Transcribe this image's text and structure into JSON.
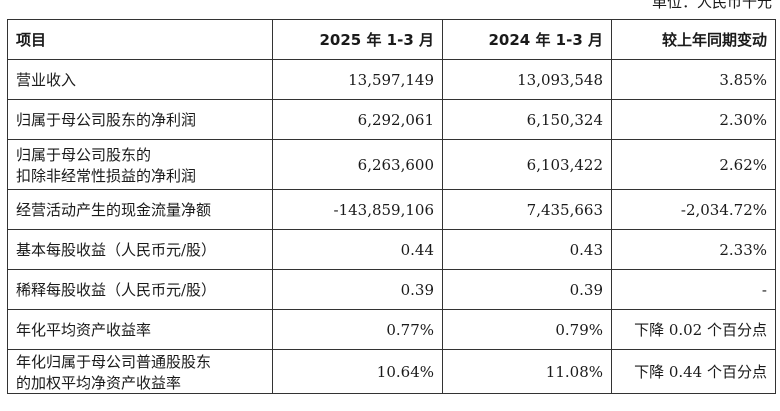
{
  "unit_note": "单位：人民币千元",
  "header": {
    "item": "项目",
    "col1": "2025 年 1-3 月",
    "col2": "2024 年 1-3 月",
    "col3": "较上年同期变动"
  },
  "rows": [
    {
      "item_lines": [
        "营业收入"
      ],
      "v2025": "13,597,149",
      "v2024": "13,093,548",
      "change": "3.85%"
    },
    {
      "item_lines": [
        "归属于母公司股东的净利润"
      ],
      "v2025": "6,292,061",
      "v2024": "6,150,324",
      "change": "2.30%"
    },
    {
      "item_lines": [
        "归属于母公司股东的",
        "扣除非经常性损益的净利润"
      ],
      "v2025": "6,263,600",
      "v2024": "6,103,422",
      "change": "2.62%"
    },
    {
      "item_lines": [
        "经营活动产生的现金流量净额"
      ],
      "v2025": "-143,859,106",
      "v2024": "7,435,663",
      "change": "-2,034.72%"
    },
    {
      "item_lines": [
        "基本每股收益（人民币元/股）"
      ],
      "v2025": "0.44",
      "v2024": "0.43",
      "change": "2.33%"
    },
    {
      "item_lines": [
        "稀释每股收益（人民币元/股）"
      ],
      "v2025": "0.39",
      "v2024": "0.39",
      "change": "-"
    },
    {
      "item_lines": [
        "年化平均资产收益率"
      ],
      "v2025": "0.77%",
      "v2024": "0.79%",
      "change": "下降 0.02 个百分点"
    },
    {
      "item_lines": [
        "年化归属于母公司普通股股东",
        "的加权平均净资产收益率"
      ],
      "v2025": "10.64%",
      "v2024": "11.08%",
      "change": "下降 0.44 个百分点"
    }
  ]
}
